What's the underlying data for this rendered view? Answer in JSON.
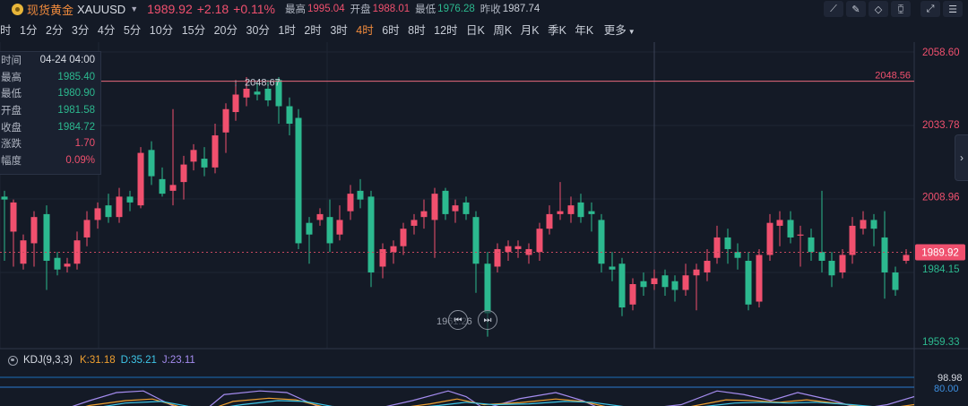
{
  "header": {
    "title": "现货黄金",
    "symbol": "XAUUSD",
    "price": "1989.92",
    "change": "+2.18",
    "change_pct": "+0.11%",
    "high_label": "最高",
    "high": "1995.04",
    "open_label": "开盘",
    "open": "1988.01",
    "low_label": "最低",
    "low": "1976.28",
    "prev_close_label": "昨收",
    "prev_close": "1987.74"
  },
  "toolbar": {
    "icons": [
      "line-draw-icon",
      "pen-icon",
      "eraser-icon",
      "candle-settings-icon",
      "expand-icon",
      "indicator-icon"
    ]
  },
  "periods": {
    "items": [
      "时",
      "1分",
      "2分",
      "3分",
      "4分",
      "5分",
      "10分",
      "15分",
      "20分",
      "30分",
      "1时",
      "2时",
      "3时",
      "4时",
      "6时",
      "8时",
      "12时",
      "日K",
      "周K",
      "月K",
      "季K",
      "年K"
    ],
    "active": "4时",
    "more_label": "更多"
  },
  "info_panel": {
    "rows": [
      {
        "label": "时间",
        "value": "04-24 04:00"
      },
      {
        "label": "最高",
        "value": "1985.40"
      },
      {
        "label": "最低",
        "value": "1980.90"
      },
      {
        "label": "开盘",
        "value": "1981.58"
      },
      {
        "label": "收盘",
        "value": "1984.72"
      },
      {
        "label": "涨跌",
        "value": "1.70"
      },
      {
        "label": "幅度",
        "value": "0.09%"
      }
    ]
  },
  "price_axis": {
    "ticks": [
      "2058.60",
      "2033.78",
      "2008.96",
      "1984.15",
      "1959.33"
    ],
    "current": "1989.92",
    "marked_high": "2048.56"
  },
  "annotations": {
    "peak_label": "2048.67",
    "trough_label": "1961.26"
  },
  "kdj": {
    "name": "KDJ(9,3,3)",
    "k": "K:31.18",
    "d": "D:35.21",
    "j": "J:23.11",
    "axis_ticks": [
      "98.98",
      "80.00"
    ]
  },
  "colors": {
    "up": "#f0506e",
    "down": "#2cb98f",
    "accent": "#f08a3c",
    "background": "#141a26"
  }
}
